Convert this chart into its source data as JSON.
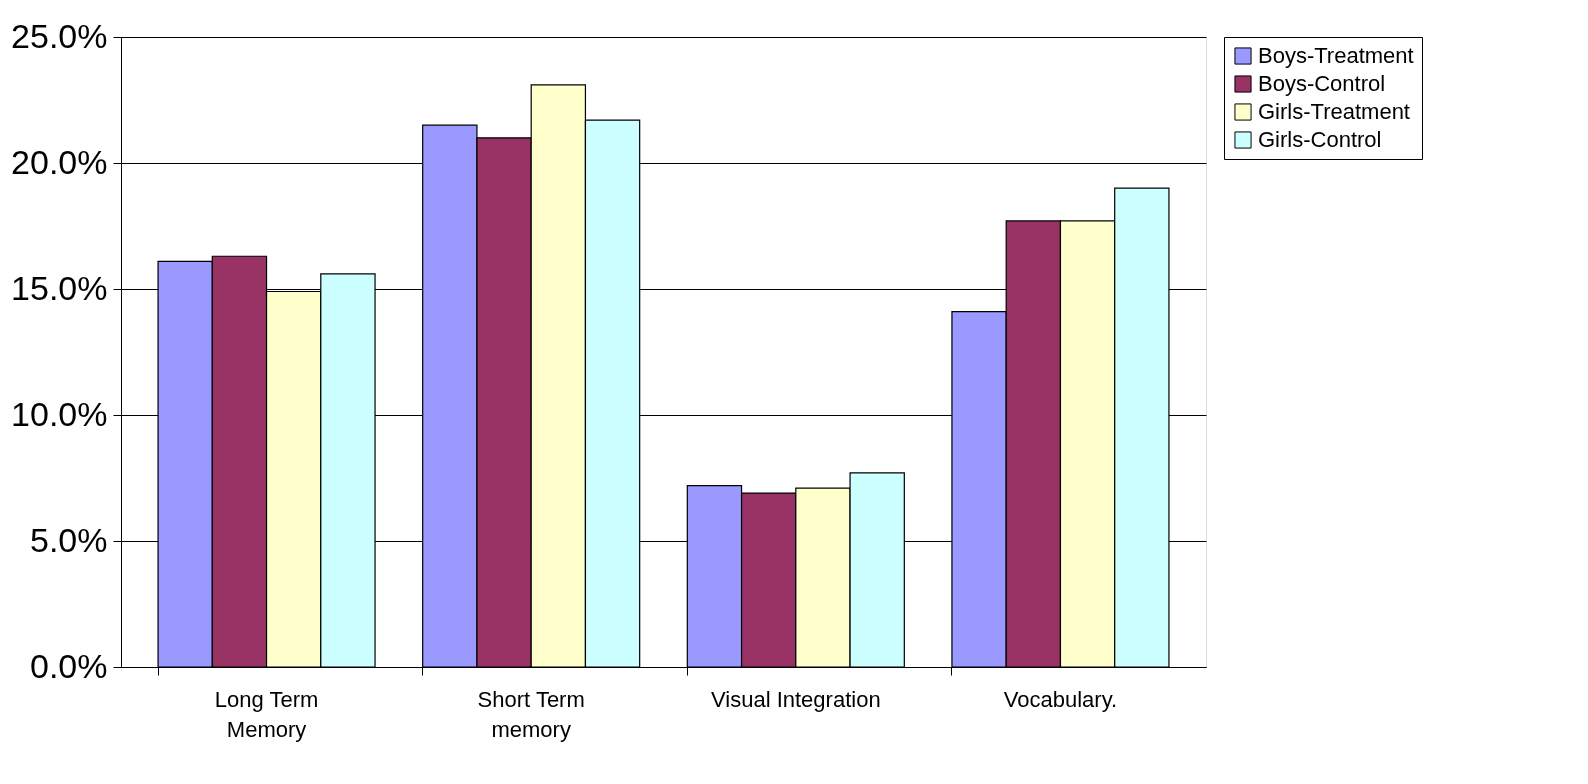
{
  "chart_data": {
    "type": "bar",
    "categories": [
      "Long Term\nMemory",
      "Short Term\nmemory",
      "Visual Integration",
      "Vocabulary."
    ],
    "series": [
      {
        "name": "Boys-Treatment",
        "color": "#9999ff",
        "values": [
          16.1,
          21.5,
          7.2,
          14.1
        ]
      },
      {
        "name": "Boys-Control",
        "color": "#993366",
        "values": [
          16.3,
          21.0,
          6.9,
          17.7
        ]
      },
      {
        "name": "Girls-Treatment",
        "color": "#ffffcc",
        "values": [
          14.9,
          23.1,
          7.1,
          17.7
        ]
      },
      {
        "name": "Girls-Control",
        "color": "#ccffff",
        "values": [
          15.6,
          21.7,
          7.7,
          19.0
        ]
      }
    ],
    "ylim": [
      0,
      25
    ],
    "yticks": [
      {
        "value": 0,
        "label": "0.0%"
      },
      {
        "value": 5,
        "label": "5.0%"
      },
      {
        "value": 10,
        "label": "10.0%"
      },
      {
        "value": 15,
        "label": "15.0%"
      },
      {
        "value": 20,
        "label": "20.0%"
      },
      {
        "value": 25,
        "label": "25.0%"
      }
    ],
    "grid": "y",
    "legend": "right"
  }
}
